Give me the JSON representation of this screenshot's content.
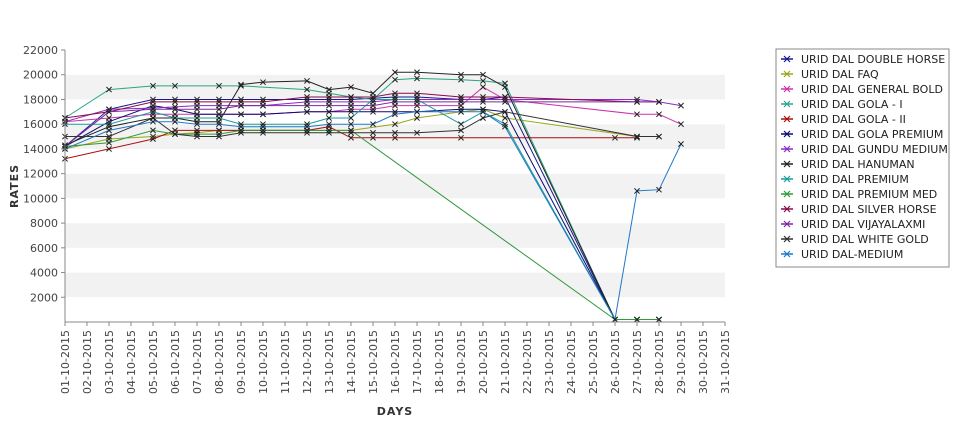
{
  "chart_data": {
    "type": "line",
    "title": "",
    "xlabel": "DAYS",
    "ylabel": "RATES",
    "ylim": [
      0,
      22000
    ],
    "xlim_days": [
      1,
      31
    ],
    "y_ticks": [
      2000,
      4000,
      6000,
      8000,
      10000,
      12000,
      14000,
      16000,
      18000,
      20000,
      22000
    ],
    "x_tick_labels": [
      "01-10-2015",
      "02-10-2015",
      "03-10-2015",
      "04-10-2015",
      "05-10-2015",
      "06-10-2015",
      "07-10-2015",
      "08-10-2015",
      "09-10-2015",
      "10-10-2015",
      "11-10-2015",
      "12-10-2015",
      "13-10-2015",
      "14-10-2015",
      "15-10-2015",
      "16-10-2015",
      "17-10-2015",
      "18-10-2015",
      "19-10-2015",
      "20-10-2015",
      "21-10-2015",
      "22-10-2015",
      "23-10-2015",
      "24-10-2015",
      "25-10-2015",
      "26-10-2015",
      "27-10-2015",
      "28-10-2015",
      "29-10-2015",
      "30-10-2015",
      "31-10-2015"
    ],
    "grid": "alternating horizontal bands",
    "legend_position": "right",
    "series": [
      {
        "name": "URID DAL DOUBLE HORSE",
        "color": "#1a1a8c",
        "marker": "x",
        "points": [
          [
            1,
            14200
          ],
          [
            3,
            17200
          ],
          [
            5,
            18000
          ],
          [
            6,
            18000
          ],
          [
            7,
            18000
          ],
          [
            8,
            18000
          ],
          [
            9,
            18000
          ],
          [
            10,
            18000
          ],
          [
            12,
            18000
          ],
          [
            13,
            18000
          ],
          [
            14,
            18000
          ],
          [
            16,
            18200
          ],
          [
            17,
            18200
          ],
          [
            19,
            18000
          ],
          [
            20,
            18000
          ],
          [
            21,
            18200
          ],
          [
            26,
            200
          ],
          [
            27,
            200
          ],
          [
            28,
            200
          ]
        ]
      },
      {
        "name": "URID DAL FAQ",
        "color": "#9aa51c",
        "marker": "x",
        "points": [
          [
            1,
            14000
          ],
          [
            3,
            14800
          ],
          [
            5,
            15000
          ],
          [
            6,
            15200
          ],
          [
            7,
            15300
          ],
          [
            8,
            15500
          ],
          [
            9,
            15500
          ],
          [
            10,
            15500
          ],
          [
            12,
            15500
          ],
          [
            13,
            15500
          ],
          [
            14,
            15500
          ],
          [
            16,
            16000
          ],
          [
            17,
            16500
          ],
          [
            19,
            17000
          ],
          [
            20,
            17200
          ],
          [
            21,
            16500
          ],
          [
            27,
            15000
          ],
          [
            28,
            15000
          ]
        ]
      },
      {
        "name": "URID DAL GENERAL BOLD",
        "color": "#cc33aa",
        "marker": "x",
        "points": [
          [
            1,
            16200
          ],
          [
            3,
            16500
          ],
          [
            5,
            16800
          ],
          [
            6,
            16800
          ],
          [
            7,
            16800
          ],
          [
            8,
            16800
          ],
          [
            9,
            16800
          ],
          [
            10,
            16800
          ],
          [
            12,
            17000
          ],
          [
            13,
            17000
          ],
          [
            14,
            17200
          ],
          [
            15,
            17200
          ],
          [
            16,
            17500
          ],
          [
            17,
            17500
          ],
          [
            19,
            17500
          ],
          [
            20,
            19000
          ],
          [
            21,
            18000
          ],
          [
            27,
            16800
          ],
          [
            28,
            16800
          ],
          [
            29,
            16000
          ]
        ]
      },
      {
        "name": "URID DAL GOLA - I",
        "color": "#2aa387",
        "marker": "x",
        "points": [
          [
            1,
            16500
          ],
          [
            3,
            18800
          ],
          [
            5,
            19100
          ],
          [
            6,
            19100
          ],
          [
            8,
            19100
          ],
          [
            9,
            19100
          ],
          [
            12,
            18800
          ],
          [
            13,
            18500
          ],
          [
            14,
            18200
          ],
          [
            15,
            18000
          ],
          [
            16,
            19600
          ],
          [
            17,
            19700
          ],
          [
            19,
            19600
          ],
          [
            20,
            19500
          ],
          [
            21,
            19300
          ],
          [
            26,
            200
          ],
          [
            27,
            200
          ],
          [
            28,
            200
          ]
        ]
      },
      {
        "name": "URID DAL GOLA - II",
        "color": "#aa1111",
        "marker": "x",
        "points": [
          [
            1,
            13200
          ],
          [
            3,
            14000
          ],
          [
            5,
            14800
          ],
          [
            6,
            15500
          ],
          [
            7,
            15500
          ],
          [
            8,
            15500
          ],
          [
            9,
            15500
          ],
          [
            10,
            15500
          ],
          [
            12,
            15500
          ],
          [
            13,
            15800
          ],
          [
            14,
            14900
          ],
          [
            15,
            14900
          ],
          [
            16,
            14900
          ],
          [
            19,
            14900
          ],
          [
            26,
            14900
          ],
          [
            27,
            14900
          ]
        ]
      },
      {
        "name": "URID DAL GOLA PREMIUM",
        "color": "#0a0a70",
        "marker": "x",
        "points": [
          [
            1,
            14200
          ],
          [
            3,
            16200
          ],
          [
            5,
            17500
          ],
          [
            6,
            17200
          ],
          [
            7,
            16800
          ],
          [
            8,
            16800
          ],
          [
            9,
            16800
          ],
          [
            10,
            16800
          ],
          [
            12,
            17000
          ],
          [
            13,
            17000
          ],
          [
            14,
            17000
          ],
          [
            15,
            17000
          ],
          [
            16,
            17000
          ],
          [
            17,
            17000
          ],
          [
            19,
            17200
          ],
          [
            20,
            17200
          ],
          [
            21,
            17000
          ],
          [
            26,
            200
          ],
          [
            27,
            200
          ],
          [
            28,
            200
          ]
        ]
      },
      {
        "name": "URID DAL GUNDU MEDIUM",
        "color": "#8a2bc4",
        "marker": "x",
        "points": [
          [
            1,
            16200
          ],
          [
            3,
            17200
          ],
          [
            5,
            17300
          ],
          [
            6,
            17400
          ],
          [
            7,
            17500
          ],
          [
            8,
            17500
          ],
          [
            9,
            17500
          ],
          [
            10,
            17500
          ],
          [
            12,
            17800
          ],
          [
            13,
            17800
          ],
          [
            14,
            17800
          ],
          [
            15,
            17800
          ],
          [
            16,
            18000
          ],
          [
            17,
            18000
          ],
          [
            19,
            18000
          ],
          [
            20,
            18000
          ],
          [
            21,
            18000
          ],
          [
            27,
            18000
          ],
          [
            28,
            17800
          ],
          [
            29,
            17500
          ]
        ]
      },
      {
        "name": "URID DAL HANUMAN",
        "color": "#222222",
        "marker": "x",
        "points": [
          [
            1,
            14300
          ],
          [
            3,
            15800
          ],
          [
            5,
            16500
          ],
          [
            6,
            16500
          ],
          [
            7,
            16200
          ],
          [
            8,
            16200
          ],
          [
            9,
            19200
          ],
          [
            10,
            19400
          ],
          [
            12,
            19500
          ],
          [
            13,
            18800
          ],
          [
            14,
            19000
          ],
          [
            15,
            18500
          ],
          [
            16,
            20200
          ],
          [
            17,
            20200
          ],
          [
            19,
            20000
          ],
          [
            20,
            20000
          ],
          [
            21,
            19000
          ],
          [
            26,
            200
          ],
          [
            27,
            200
          ],
          [
            28,
            200
          ]
        ]
      },
      {
        "name": "URID DAL PREMIUM",
        "color": "#1b9b9b",
        "marker": "x",
        "points": [
          [
            1,
            16000
          ],
          [
            3,
            16000
          ],
          [
            5,
            17000
          ],
          [
            6,
            16500
          ],
          [
            7,
            16500
          ],
          [
            8,
            16500
          ],
          [
            9,
            16000
          ],
          [
            10,
            16000
          ],
          [
            12,
            16000
          ],
          [
            13,
            16500
          ],
          [
            14,
            16500
          ],
          [
            15,
            18000
          ],
          [
            16,
            18000
          ],
          [
            17,
            18000
          ],
          [
            19,
            16000
          ],
          [
            20,
            17000
          ],
          [
            21,
            16000
          ],
          [
            26,
            200
          ],
          [
            27,
            200
          ],
          [
            28,
            200
          ]
        ]
      },
      {
        "name": "URID DAL PREMIUM MED",
        "color": "#2e9a3a",
        "marker": "x",
        "points": [
          [
            1,
            14200
          ],
          [
            3,
            14500
          ],
          [
            5,
            15500
          ],
          [
            6,
            15200
          ],
          [
            7,
            15200
          ],
          [
            8,
            15200
          ],
          [
            9,
            15500
          ],
          [
            10,
            15500
          ],
          [
            12,
            15500
          ],
          [
            13,
            15500
          ],
          [
            14,
            15500
          ],
          [
            26,
            200
          ],
          [
            27,
            200
          ],
          [
            28,
            200
          ]
        ]
      },
      {
        "name": "URID DAL SILVER HORSE",
        "color": "#8a0a4a",
        "marker": "x",
        "points": [
          [
            1,
            16500
          ],
          [
            3,
            17000
          ],
          [
            5,
            17800
          ],
          [
            6,
            17800
          ],
          [
            7,
            17800
          ],
          [
            8,
            17800
          ],
          [
            9,
            17800
          ],
          [
            10,
            17800
          ],
          [
            12,
            18200
          ],
          [
            13,
            18200
          ],
          [
            14,
            18200
          ],
          [
            15,
            18200
          ],
          [
            16,
            18500
          ],
          [
            17,
            18500
          ],
          [
            19,
            18200
          ],
          [
            20,
            18200
          ],
          [
            21,
            18200
          ],
          [
            27,
            17800
          ],
          [
            28,
            17800
          ]
        ]
      },
      {
        "name": "URID DAL VIJAYALAXMI",
        "color": "#7a2aa0",
        "marker": "x",
        "points": [
          [
            1,
            14200
          ],
          [
            3,
            17000
          ],
          [
            5,
            17200
          ],
          [
            6,
            17200
          ],
          [
            7,
            17200
          ],
          [
            8,
            17200
          ],
          [
            9,
            17500
          ],
          [
            10,
            17500
          ],
          [
            12,
            17500
          ],
          [
            13,
            17500
          ],
          [
            14,
            17500
          ],
          [
            15,
            17500
          ],
          [
            16,
            17800
          ],
          [
            17,
            17800
          ],
          [
            19,
            17800
          ],
          [
            20,
            17800
          ],
          [
            21,
            17800
          ],
          [
            27,
            17800
          ],
          [
            28,
            17800
          ]
        ]
      },
      {
        "name": "URID DAL WHITE GOLD",
        "color": "#333333",
        "marker": "x",
        "points": [
          [
            1,
            15000
          ],
          [
            3,
            15000
          ],
          [
            5,
            16500
          ],
          [
            6,
            15200
          ],
          [
            7,
            15000
          ],
          [
            8,
            15000
          ],
          [
            9,
            15300
          ],
          [
            10,
            15300
          ],
          [
            12,
            15300
          ],
          [
            13,
            15300
          ],
          [
            14,
            15300
          ],
          [
            15,
            15300
          ],
          [
            16,
            15300
          ],
          [
            17,
            15300
          ],
          [
            19,
            15500
          ],
          [
            20,
            16500
          ],
          [
            21,
            17000
          ],
          [
            27,
            15000
          ],
          [
            28,
            15000
          ]
        ]
      },
      {
        "name": "URID DAL-MEDIUM",
        "color": "#1f78c8",
        "marker": "x",
        "points": [
          [
            1,
            14000
          ],
          [
            3,
            15500
          ],
          [
            5,
            16200
          ],
          [
            6,
            16200
          ],
          [
            7,
            16000
          ],
          [
            8,
            16000
          ],
          [
            9,
            15800
          ],
          [
            10,
            15800
          ],
          [
            12,
            15800
          ],
          [
            13,
            16000
          ],
          [
            14,
            16000
          ],
          [
            15,
            16000
          ],
          [
            16,
            16800
          ],
          [
            17,
            17000
          ],
          [
            19,
            17000
          ],
          [
            20,
            17000
          ],
          [
            21,
            15800
          ],
          [
            26,
            200
          ],
          [
            27,
            10600
          ],
          [
            28,
            10700
          ],
          [
            29,
            14400
          ]
        ]
      }
    ]
  }
}
